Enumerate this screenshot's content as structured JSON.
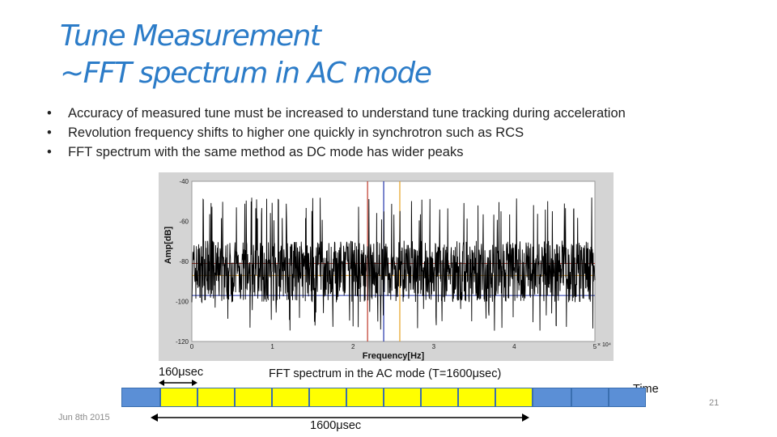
{
  "slide": {
    "title_line1": "Tune Measurement",
    "title_line2": "~FFT spectrum in AC mode",
    "bullets": [
      "Accuracy of measured tune must be increased to understand tune tracking during acceleration",
      "Revolution frequency shifts to higher one quickly in synchrotron such as RCS",
      "FFT spectrum with the same method as DC mode has wider peaks"
    ],
    "footer_date": "Jun 8th 2015",
    "page_number": "21"
  },
  "chart_data": {
    "type": "line",
    "xlabel": "Frequency[Hz]",
    "ylabel": "Amp[dB]",
    "xlim": [
      0,
      5
    ],
    "ylim": [
      -120,
      -40
    ],
    "x_ticks": [
      "0",
      "1",
      "2",
      "3",
      "4",
      "5"
    ],
    "y_ticks": [
      "-40",
      "-60",
      "-80",
      "-100",
      "-120"
    ],
    "x_multiplier": "× 10⁴",
    "grid": false,
    "series": [
      {
        "color": "#000000",
        "x_range": [
          0,
          5
        ],
        "mean": -85,
        "spread": 22
      }
    ],
    "vertical_markers": [
      {
        "x": 2.18,
        "color": "#c0392b"
      },
      {
        "x": 2.38,
        "color": "#2233aa"
      },
      {
        "x": 2.58,
        "color": "#e6a020"
      }
    ],
    "horizontal_markers": [
      {
        "y": -81,
        "color": "#c0392b"
      },
      {
        "y": -87,
        "color": "#e6a020"
      },
      {
        "y": -97,
        "color": "#2233aa"
      }
    ]
  },
  "timing": {
    "interval_label": "160μsec",
    "caption": "FFT spectrum in the AC mode (T=1600μsec)",
    "time_label": "Time",
    "span_label": "1600μsec",
    "cells": [
      {
        "color": "blue"
      },
      {
        "color": "yellow"
      },
      {
        "color": "yellow"
      },
      {
        "color": "yellow"
      },
      {
        "color": "yellow"
      },
      {
        "color": "yellow"
      },
      {
        "color": "yellow"
      },
      {
        "color": "yellow"
      },
      {
        "color": "yellow"
      },
      {
        "color": "yellow"
      },
      {
        "color": "yellow"
      },
      {
        "color": "blue"
      },
      {
        "color": "blue"
      },
      {
        "color": "blue"
      }
    ]
  }
}
